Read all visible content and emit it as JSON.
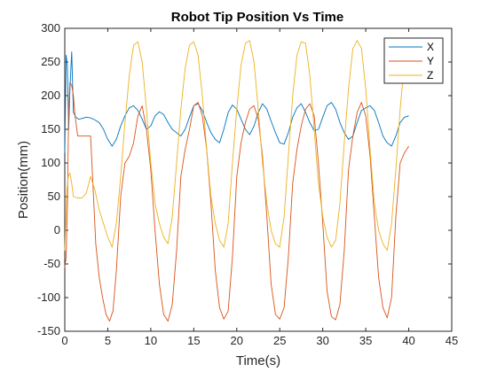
{
  "chart_data": {
    "type": "line",
    "title": "Robot Tip Position Vs Time",
    "xlabel": "Time(s)",
    "ylabel": "Position(mm)",
    "xlim": [
      0,
      45
    ],
    "ylim": [
      -150,
      300
    ],
    "xticks": [
      "0",
      "5",
      "10",
      "15",
      "20",
      "25",
      "30",
      "35",
      "40",
      "45"
    ],
    "yticks": [
      "300",
      "250",
      "200",
      "150",
      "100",
      "50",
      "0",
      "-50",
      "-100",
      "-150"
    ],
    "grid": false,
    "legend_position": "top-right",
    "series": [
      {
        "name": "X",
        "color": "#0072BD",
        "x": [
          0,
          0.15,
          0.3,
          0.45,
          0.6,
          0.8,
          1.0,
          1.3,
          1.6,
          2.0,
          2.5,
          3.0,
          3.5,
          4.0,
          4.5,
          5.0,
          5.5,
          6.0,
          6.5,
          7.0,
          7.5,
          8.0,
          8.5,
          9.0,
          9.5,
          10.0,
          10.5,
          11.0,
          11.5,
          12.0,
          12.5,
          13.0,
          13.5,
          14.0,
          14.5,
          15.0,
          15.5,
          16.0,
          16.5,
          17.0,
          17.5,
          18.0,
          18.5,
          19.0,
          19.5,
          20.0,
          20.5,
          21.0,
          21.5,
          22.0,
          22.5,
          23.0,
          23.5,
          24.0,
          24.5,
          25.0,
          25.5,
          26.0,
          26.5,
          27.0,
          27.5,
          28.0,
          28.5,
          29.0,
          29.5,
          30.0,
          30.5,
          31.0,
          31.5,
          32.0,
          32.5,
          33.0,
          33.5,
          34.0,
          34.5,
          35.0,
          35.5,
          36.0,
          36.5,
          37.0,
          37.5,
          38.0,
          38.5,
          39.0,
          39.5,
          40.0
        ],
        "values": [
          115,
          260,
          245,
          150,
          210,
          265,
          175,
          168,
          165,
          166,
          168,
          167,
          164,
          160,
          150,
          135,
          125,
          135,
          155,
          170,
          182,
          185,
          178,
          165,
          150,
          155,
          170,
          176,
          172,
          160,
          150,
          145,
          140,
          150,
          168,
          185,
          188,
          178,
          160,
          145,
          135,
          130,
          150,
          175,
          186,
          180,
          165,
          150,
          142,
          155,
          175,
          188,
          180,
          162,
          145,
          130,
          128,
          145,
          168,
          182,
          188,
          175,
          160,
          148,
          150,
          168,
          185,
          190,
          180,
          160,
          145,
          135,
          140,
          160,
          178,
          182,
          185,
          178,
          160,
          140,
          130,
          125,
          140,
          160,
          168,
          170
        ]
      },
      {
        "name": "Y",
        "color": "#D95319",
        "x": [
          0,
          0.15,
          0.3,
          0.45,
          0.6,
          0.8,
          1.0,
          1.2,
          1.5,
          2.0,
          2.5,
          3.0,
          3.3,
          3.6,
          4.0,
          4.4,
          4.8,
          5.2,
          5.6,
          6.0,
          6.5,
          7.0,
          7.5,
          8.0,
          8.5,
          9.0,
          9.5,
          10.0,
          10.5,
          11.0,
          11.5,
          12.0,
          12.5,
          13.0,
          13.5,
          14.0,
          14.5,
          15.0,
          15.5,
          16.0,
          16.5,
          17.0,
          17.5,
          18.0,
          18.5,
          19.0,
          19.5,
          20.0,
          20.5,
          21.0,
          21.5,
          22.0,
          22.5,
          23.0,
          23.5,
          24.0,
          24.5,
          25.0,
          25.5,
          26.0,
          26.5,
          27.0,
          27.5,
          28.0,
          28.5,
          29.0,
          29.5,
          30.0,
          30.5,
          31.0,
          31.5,
          32.0,
          32.5,
          33.0,
          33.5,
          34.0,
          34.5,
          35.0,
          35.5,
          36.0,
          36.5,
          37.0,
          37.5,
          38.0,
          38.5,
          39.0,
          39.5,
          40.0
        ],
        "values": [
          -55,
          -40,
          30,
          180,
          220,
          215,
          200,
          170,
          140,
          140,
          140,
          140,
          60,
          -20,
          -70,
          -100,
          -125,
          -135,
          -120,
          -60,
          50,
          100,
          110,
          130,
          170,
          185,
          150,
          90,
          0,
          -80,
          -125,
          -135,
          -110,
          -30,
          80,
          120,
          150,
          185,
          190,
          170,
          120,
          40,
          -60,
          -115,
          -132,
          -120,
          -40,
          80,
          130,
          160,
          180,
          185,
          165,
          110,
          20,
          -80,
          -125,
          -132,
          -115,
          -40,
          70,
          120,
          155,
          180,
          188,
          170,
          100,
          10,
          -90,
          -128,
          -133,
          -110,
          -30,
          90,
          140,
          175,
          190,
          170,
          110,
          20,
          -70,
          -115,
          -130,
          -100,
          20,
          100,
          115,
          125
        ]
      },
      {
        "name": "Z",
        "color": "#EDB120",
        "x": [
          0,
          0.1,
          0.25,
          0.4,
          0.6,
          0.8,
          1.0,
          1.5,
          2.0,
          2.5,
          3.0,
          3.5,
          4.0,
          4.5,
          5.0,
          5.5,
          6.0,
          6.5,
          7.0,
          7.5,
          8.0,
          8.5,
          9.0,
          9.5,
          10.0,
          10.5,
          11.0,
          11.5,
          12.0,
          12.5,
          13.0,
          13.5,
          14.0,
          14.5,
          15.0,
          15.5,
          16.0,
          16.5,
          17.0,
          17.5,
          18.0,
          18.5,
          19.0,
          19.5,
          20.0,
          20.5,
          21.0,
          21.5,
          22.0,
          22.5,
          23.0,
          23.5,
          24.0,
          24.5,
          25.0,
          25.5,
          26.0,
          26.5,
          27.0,
          27.5,
          28.0,
          28.5,
          29.0,
          29.5,
          30.0,
          30.5,
          31.0,
          31.5,
          32.0,
          32.5,
          33.0,
          33.5,
          34.0,
          34.5,
          35.0,
          35.5,
          36.0,
          36.5,
          37.0,
          37.5,
          38.0,
          38.5,
          39.0,
          39.5,
          40.0
        ],
        "values": [
          -30,
          10,
          60,
          80,
          85,
          70,
          50,
          48,
          48,
          55,
          80,
          60,
          30,
          10,
          -10,
          -25,
          10,
          80,
          160,
          230,
          275,
          280,
          250,
          180,
          100,
          40,
          10,
          -10,
          -20,
          20,
          100,
          180,
          240,
          275,
          280,
          260,
          200,
          120,
          50,
          10,
          -15,
          -25,
          10,
          100,
          180,
          245,
          278,
          282,
          250,
          180,
          100,
          40,
          0,
          -20,
          -25,
          20,
          110,
          200,
          260,
          280,
          278,
          230,
          150,
          70,
          20,
          -10,
          -25,
          -15,
          40,
          130,
          210,
          270,
          282,
          270,
          210,
          120,
          40,
          0,
          -20,
          -30,
          10,
          90,
          180,
          250,
          280
        ]
      }
    ]
  }
}
